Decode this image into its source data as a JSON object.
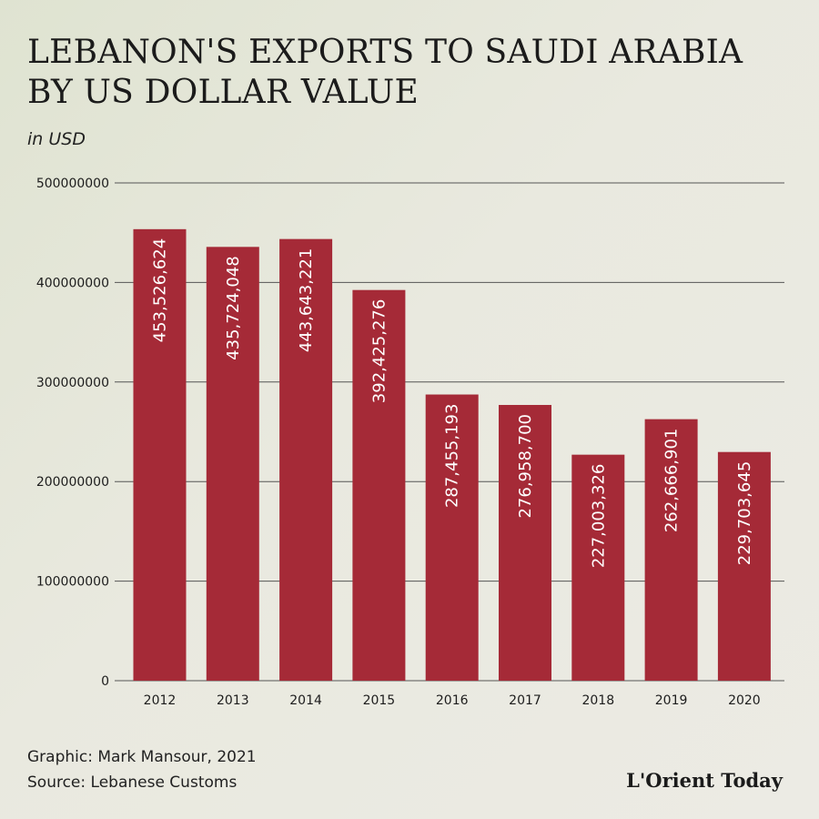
{
  "header": {
    "title_line1": "LEBANON'S EXPORTS TO SAUDI ARABIA",
    "title_line2": "BY US DOLLAR VALUE",
    "subtitle": "in USD"
  },
  "footer": {
    "credit": "Graphic: Mark Mansour, 2021",
    "source": "Source: Lebanese Customs",
    "logo_text": "L'Orient Today"
  },
  "colors": {
    "bar": "#a52a37",
    "grid": "#555555",
    "bar_label": "#ffffff"
  },
  "chart_data": {
    "type": "bar",
    "title": "LEBANON'S EXPORTS TO SAUDI ARABIA BY US DOLLAR VALUE",
    "subtitle": "in USD",
    "xlabel": "",
    "ylabel": "",
    "ylim": [
      0,
      500000000
    ],
    "yticks": [
      "0",
      "100000000",
      "200000000",
      "300000000",
      "400000000",
      "500000000"
    ],
    "ytick_values": [
      0,
      100000000,
      200000000,
      300000000,
      400000000,
      500000000
    ],
    "grid": true,
    "categories": [
      "2012",
      "2013",
      "2014",
      "2015",
      "2016",
      "2017",
      "2018",
      "2019",
      "2020"
    ],
    "values": [
      453526624,
      435724048,
      443643221,
      392425276,
      287455193,
      276958700,
      227003326,
      262666901,
      229703645
    ],
    "data_labels": [
      "453,526,624",
      "435,724,048",
      "443,643,221",
      "392,425,276",
      "287,455,193",
      "276,958,700",
      "227,003,326",
      "262,666,901",
      "229,703,645"
    ]
  }
}
